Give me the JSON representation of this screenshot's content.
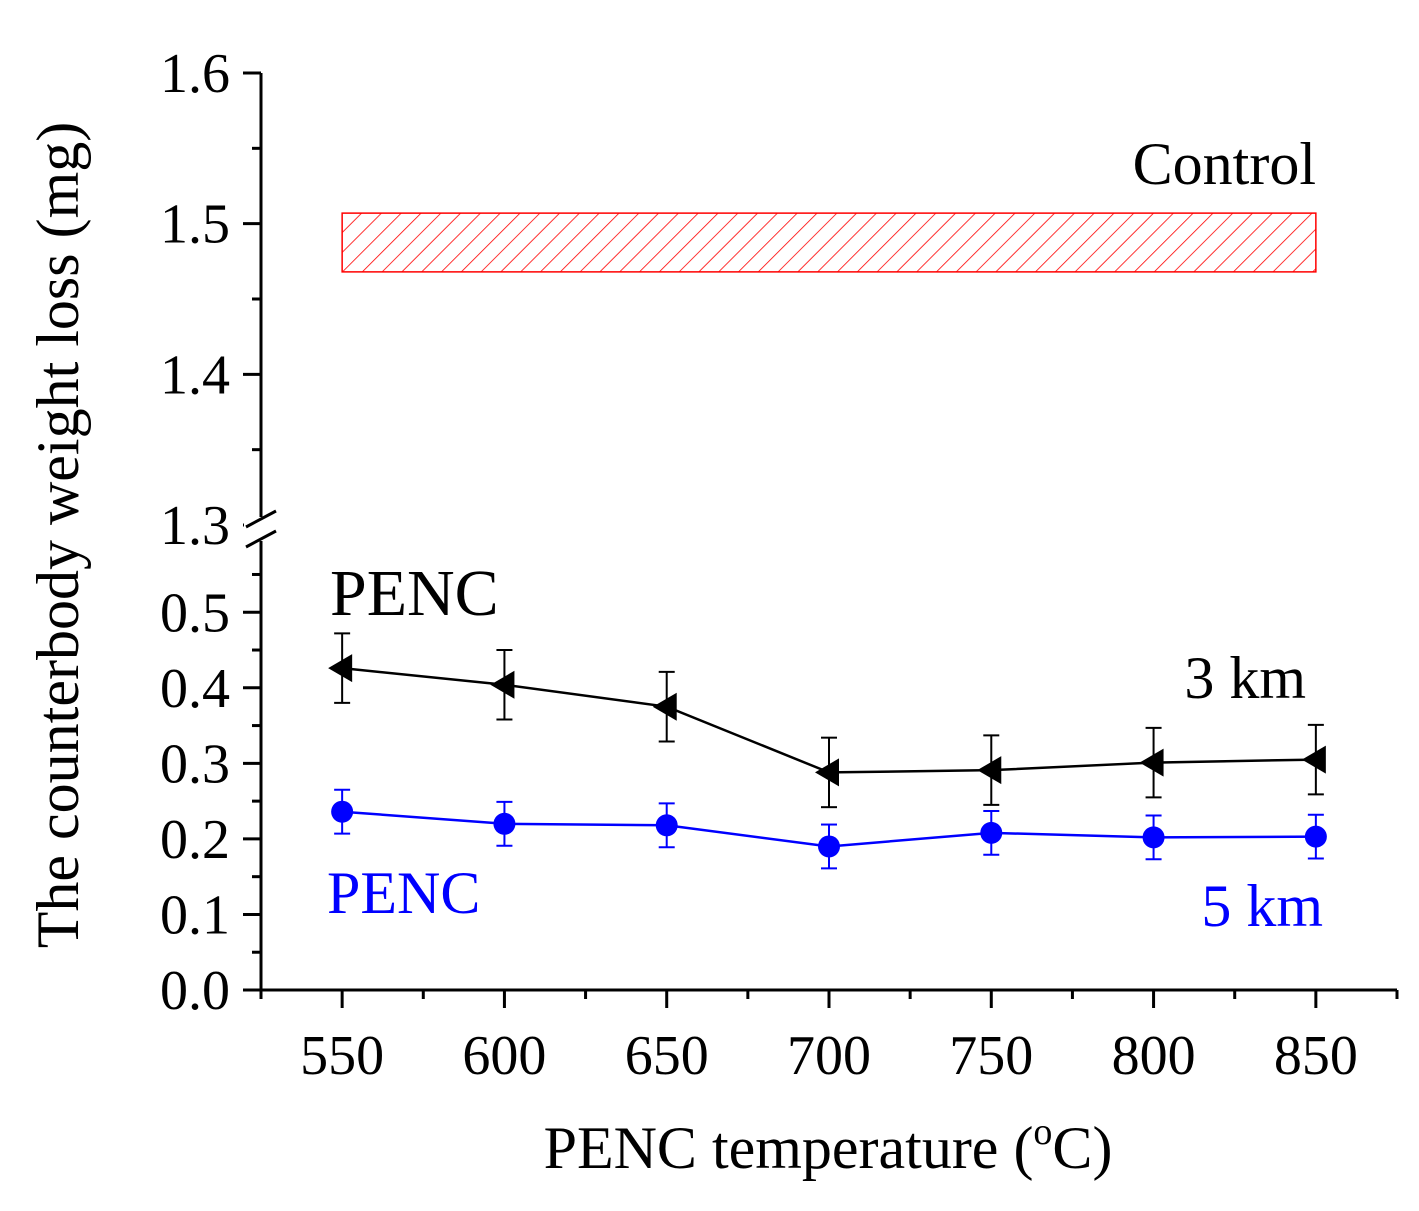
{
  "chart_data": {
    "type": "line",
    "title": "",
    "xlabel": "PENC temperature (",
    "xlabel_sup": "o",
    "xlabel_tail": "C)",
    "ylabel": "The counterbody weight loss (mg)",
    "x": [
      550,
      600,
      650,
      700,
      750,
      800,
      850
    ],
    "xlim": [
      525,
      875
    ],
    "x_ticks": [
      "550",
      "600",
      "650",
      "700",
      "750",
      "800",
      "850"
    ],
    "y_break": {
      "lower_range": [
        0.0,
        0.6
      ],
      "upper_range": [
        1.3,
        1.6
      ]
    },
    "y_ticks_lower": [
      "0.0",
      "0.1",
      "0.2",
      "0.3",
      "0.4",
      "0.5"
    ],
    "y_ticks_upper": [
      "1.3",
      "1.4",
      "1.5",
      "1.6"
    ],
    "series": [
      {
        "name": "PENC 3 km",
        "color": "#000000",
        "marker": "left-triangle",
        "values": [
          0.426,
          0.404,
          0.375,
          0.288,
          0.291,
          0.301,
          0.305
        ],
        "errors": [
          0.046,
          0.046,
          0.046,
          0.046,
          0.046,
          0.046,
          0.046
        ]
      },
      {
        "name": "PENC 5 km",
        "color": "#0000ff",
        "marker": "circle",
        "values": [
          0.236,
          0.22,
          0.218,
          0.19,
          0.208,
          0.202,
          0.203
        ],
        "errors": [
          0.029,
          0.029,
          0.029,
          0.029,
          0.029,
          0.029,
          0.029
        ]
      }
    ],
    "control_band": {
      "low": 1.468,
      "high": 1.507,
      "color": "#ff0000",
      "x_from": 550,
      "x_to": 850
    },
    "annotations": {
      "control": "Control",
      "penc_black": "PENC",
      "km3": "3 km",
      "penc_blue": "PENC",
      "km5": "5 km"
    }
  }
}
